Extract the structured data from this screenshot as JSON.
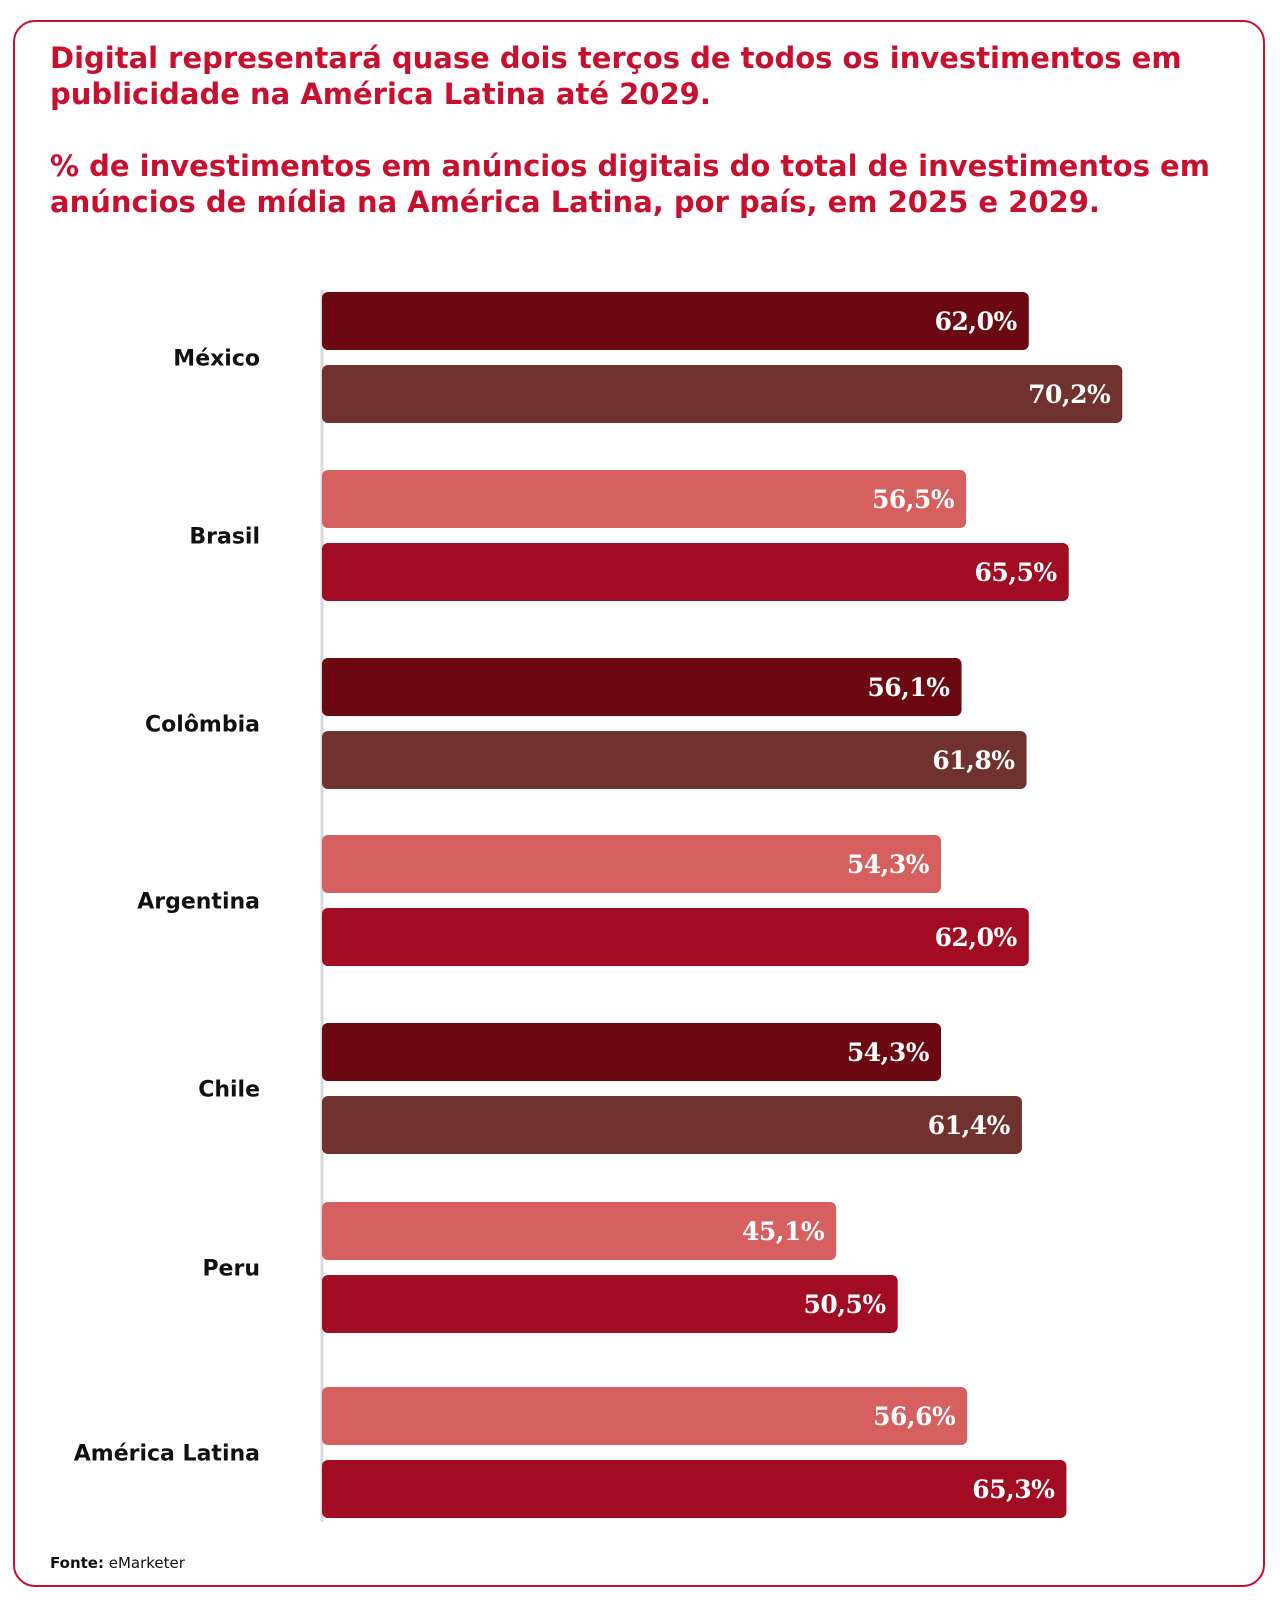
{
  "chart_data": {
    "type": "bar",
    "orientation": "horizontal",
    "title": "Digital representará quase dois terços de todos os investimentos em publicidade na América Latina até 2029.",
    "subtitle": "% de investimentos em anúncios digitais do total de investimentos em anúncios de mídia na América Latina, por país, em 2025 e 2029.",
    "xlim": [
      0,
      100
    ],
    "grid": false,
    "legend": "none",
    "categories": [
      "México",
      "Brasil",
      "Colômbia",
      "Argentina",
      "Chile",
      "Peru",
      "América Latina"
    ],
    "series": [
      {
        "name": "2025",
        "values": [
          62.0,
          56.5,
          56.1,
          54.3,
          54.3,
          45.1,
          56.6
        ],
        "labels": [
          "62,0%",
          "56,5%",
          "56,1%",
          "54,3%",
          "54,3%",
          "45,1%",
          "56,6%"
        ],
        "colors": [
          "#6b0811",
          "#d66060",
          "#6b0811",
          "#d66060",
          "#6b0811",
          "#d66060",
          "#d66060"
        ]
      },
      {
        "name": "2029",
        "values": [
          70.2,
          65.5,
          61.8,
          62.0,
          61.4,
          50.5,
          65.3
        ],
        "labels": [
          "70,2%",
          "65,5%",
          "61,8%",
          "62,0%",
          "61,4%",
          "50,5%",
          "65,3%"
        ],
        "colors": [
          "#70322f",
          "#a20c22",
          "#70322f",
          "#a20c22",
          "#70322f",
          "#a20c22",
          "#a20c22"
        ]
      }
    ]
  },
  "source": {
    "label": "Fonte:",
    "value": "eMarketer"
  },
  "colors": {
    "accent": "#c8102e",
    "axis": "#d9d9d9"
  }
}
